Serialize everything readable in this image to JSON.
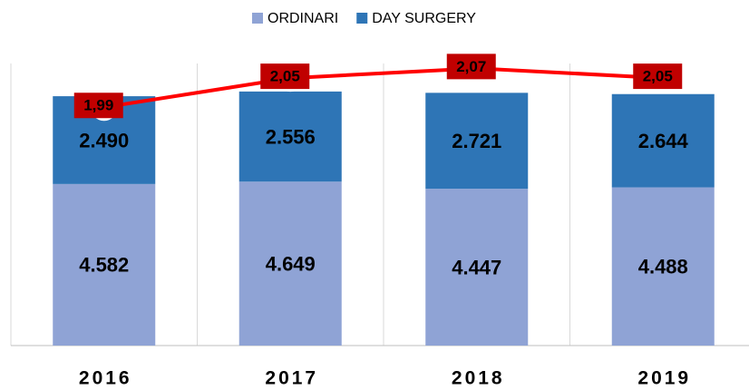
{
  "chart_data": {
    "type": "stacked-bar-line",
    "categories": [
      "2016",
      "2017",
      "2018",
      "2019"
    ],
    "ylim": [
      0,
      8000
    ],
    "y2lim": [
      1.5,
      2.08
    ],
    "series": [
      {
        "name": "ORDINARI",
        "color": "#8fa3d5",
        "values": [
          4582,
          4649,
          4447,
          4488
        ],
        "value_labels": [
          "4.582",
          "4.649",
          "4.447",
          "4.488"
        ]
      },
      {
        "name": "DAY SURGERY",
        "color": "#2e75b6",
        "values": [
          2490,
          2556,
          2721,
          2644
        ],
        "value_labels": [
          "2.490",
          "2.556",
          "2.721",
          "2.644"
        ]
      },
      {
        "color": "#ff0000",
        "axis": "y2",
        "values": [
          1.99,
          2.05,
          2.07,
          2.05
        ],
        "value_labels": [
          "1,99",
          "2,05",
          "2,07",
          "2,05"
        ]
      }
    ]
  }
}
